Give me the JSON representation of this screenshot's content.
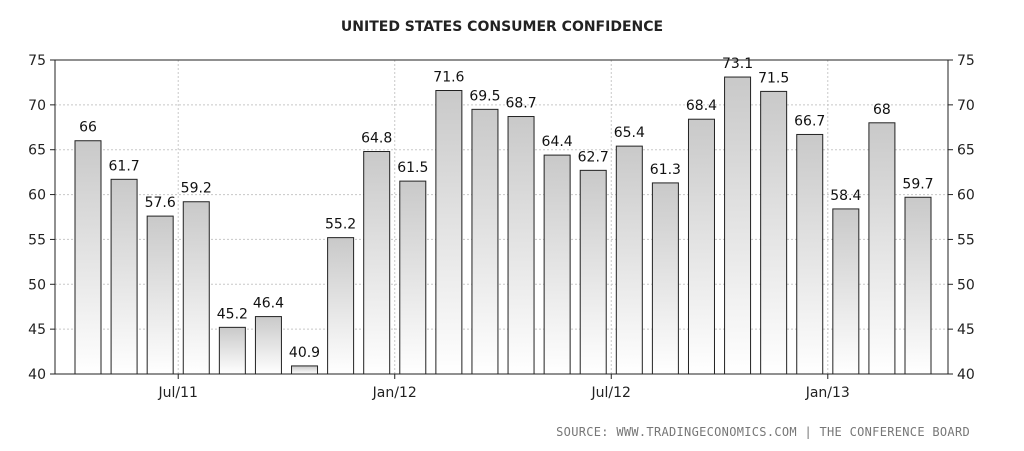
{
  "chart_data": {
    "type": "bar",
    "title": "UNITED STATES CONSUMER CONFIDENCE",
    "source": "SOURCE: WWW.TRADINGECONOMICS.COM | THE CONFERENCE BOARD",
    "ylim": [
      40,
      75
    ],
    "yticks": [
      40,
      45,
      50,
      55,
      60,
      65,
      70,
      75
    ],
    "grid": true,
    "x_tick_labels": [
      {
        "index": 2.5,
        "label": "Jul/11"
      },
      {
        "index": 8.5,
        "label": "Jan/12"
      },
      {
        "index": 14.5,
        "label": "Jul/12"
      },
      {
        "index": 20.5,
        "label": "Jan/13"
      }
    ],
    "values": [
      66,
      61.7,
      57.6,
      59.2,
      45.2,
      46.4,
      40.9,
      55.2,
      64.8,
      61.5,
      71.6,
      69.5,
      68.7,
      64.4,
      62.7,
      65.4,
      61.3,
      68.4,
      73.1,
      71.5,
      66.7,
      58.4,
      68,
      59.7
    ],
    "value_labels": [
      "66",
      "61.7",
      "57.6",
      "59.2",
      "45.2",
      "46.4",
      "40.9",
      "55.2",
      "64.8",
      "61.5",
      "71.6",
      "69.5",
      "68.7",
      "64.4",
      "62.7",
      "65.4",
      "61.3",
      "68.4",
      "73.1",
      "71.5",
      "66.7",
      "58.4",
      "68",
      "59.7"
    ],
    "colors": {
      "bar_top": "#c9c9c9",
      "bar_bottom": "#ffffff",
      "bar_stroke": "#222222",
      "grid": "#c8c8c8"
    }
  }
}
